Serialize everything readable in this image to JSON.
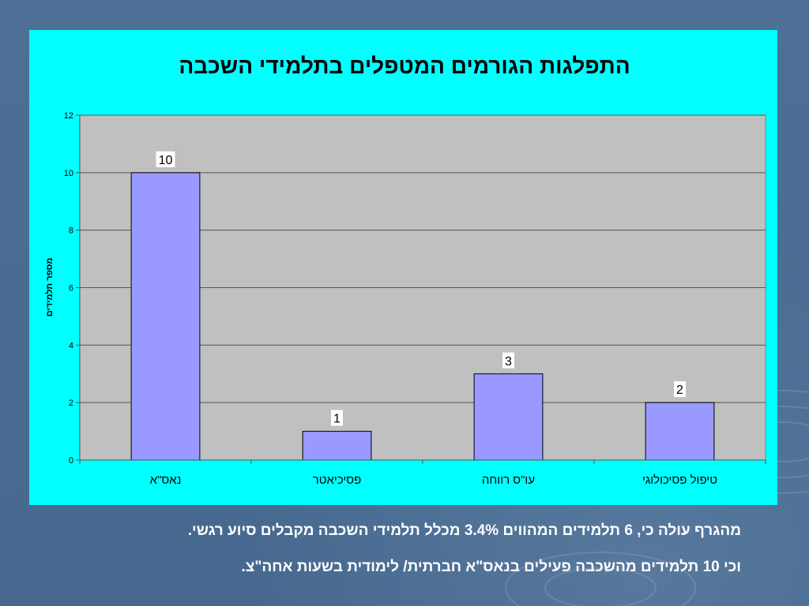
{
  "colors": {
    "slide_background": "#4a6a90",
    "chart_panel": "#00ffff",
    "plot_area": "#c0c0c0",
    "bar_fill": "#9999ff",
    "caption_text": "#ffffff"
  },
  "chart_data": {
    "type": "bar",
    "title": "התפלגות הגורמים המטפלים בתלמידי השכבה",
    "xlabel": "",
    "ylabel": "מספר תלמידים",
    "categories": [
      "נאס\"א",
      "פסיכיאטר",
      "עו\"ס רווחה",
      "טיפול פסיכולוגי"
    ],
    "values": [
      10,
      1,
      3,
      2
    ],
    "ylim": [
      0,
      12
    ],
    "yticks": [
      0,
      2,
      4,
      6,
      8,
      10,
      12
    ],
    "grid": true,
    "data_labels": true
  },
  "caption": {
    "line1": "מהגרף עולה כי, 6 תלמידים המהווים 3.4% מכלל תלמידי השכבה מקבלים סיוע רגשי.",
    "line2": "וכי 10 תלמידים מהשכבה פעילים בנאס\"א חברתית/ לימודית בשעות אחה\"צ."
  }
}
